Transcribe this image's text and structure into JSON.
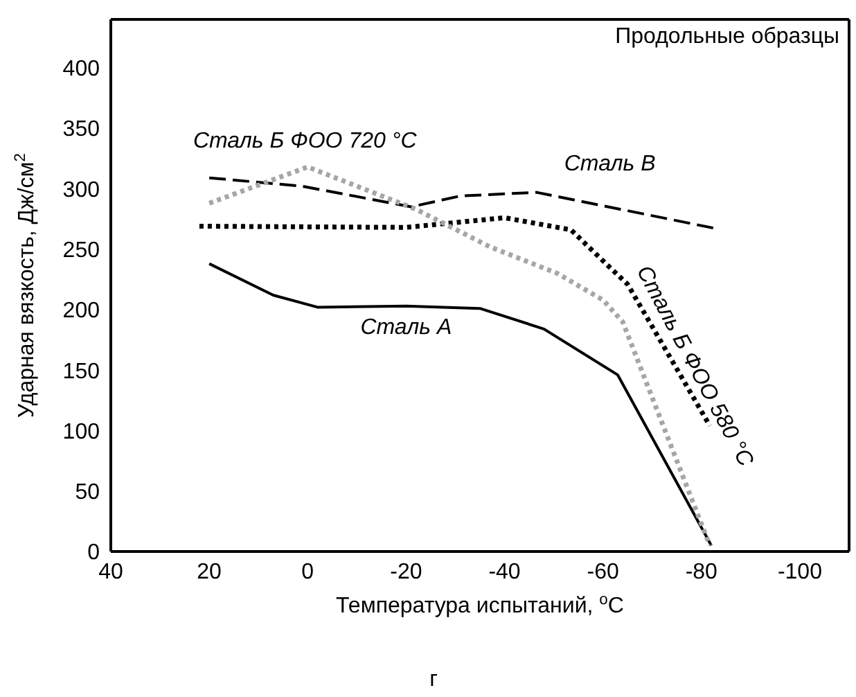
{
  "chart_data": {
    "type": "line",
    "xlabel": "Температура испытаний, $^{o}$C",
    "ylabel": "Ударная вязкость, Дж/см$^{2}$",
    "xlim": [
      40,
      -110
    ],
    "xticks": [
      40,
      20,
      0,
      -20,
      -40,
      -60,
      -80,
      -100
    ],
    "ylim": [
      0,
      440
    ],
    "yticks": [
      0,
      50,
      100,
      150,
      200,
      250,
      300,
      350,
      400
    ],
    "annotations": [
      "Продольные образцы",
      "г"
    ],
    "series": [
      {
        "name": "Сталь А",
        "color": "#000000",
        "line_style": "solid",
        "x": [
          20,
          7,
          -2,
          -20,
          -35,
          -48,
          -63,
          -82
        ],
        "values": [
          238,
          212,
          202,
          203,
          201,
          184,
          146,
          5
        ]
      },
      {
        "name": "Сталь В",
        "color": "#000000",
        "line_style": "dashed",
        "x": [
          20,
          1,
          -21,
          -31,
          -46.5,
          -83
        ],
        "values": [
          309,
          302,
          285,
          294,
          297,
          267
        ]
      },
      {
        "name": "Сталь Б ФОО 580 °C",
        "color": "#000000",
        "line_style": "dotted",
        "x": [
          22,
          -20,
          -40,
          -53.5,
          -60.6,
          -65,
          -71,
          -81.7
        ],
        "values": [
          269,
          268,
          276,
          266,
          238,
          221,
          179,
          104
        ]
      },
      {
        "name": "Сталь Б ФОО 720 °C",
        "color": "#a6a6a6",
        "line_style": "dotted",
        "x": [
          20,
          0,
          -22,
          -37,
          -50.7,
          -60,
          -64,
          -81.7
        ],
        "values": [
          288,
          318,
          283,
          252,
          230,
          208,
          190,
          5
        ]
      }
    ]
  }
}
